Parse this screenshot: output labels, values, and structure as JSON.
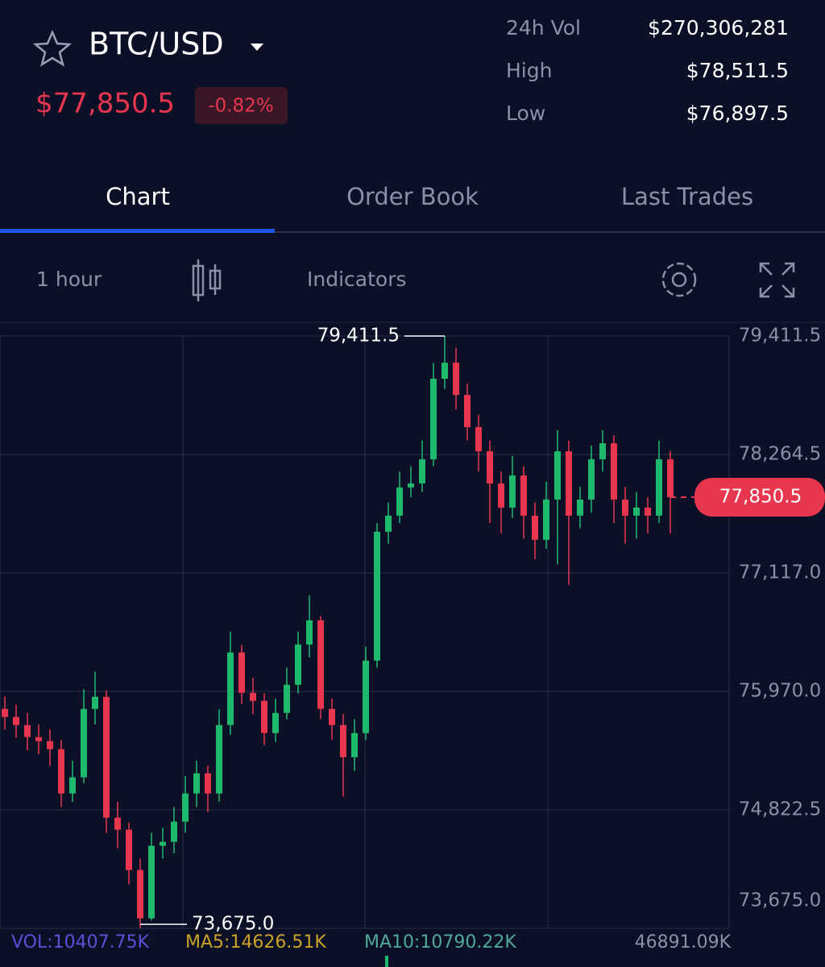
{
  "header": {
    "pair": "BTC/USD",
    "price": "$77,850.5",
    "change": "-0.82%",
    "stats": [
      {
        "label": "24h Vol",
        "value": "$270,306,281"
      },
      {
        "label": "High",
        "value": "$78,511.5"
      },
      {
        "label": "Low",
        "value": "$76,897.5"
      }
    ]
  },
  "tabs": [
    "Chart",
    "Order Book",
    "Last Trades"
  ],
  "toolbar": {
    "interval": "1 hour",
    "indicators": "Indicators"
  },
  "chart_data": {
    "type": "candlestick",
    "up_color": "#1fb96e",
    "down_color": "#e8364f",
    "grid": true,
    "ylim": [
      73675.0,
      79411.5
    ],
    "yticks": [
      {
        "value": 79411.5,
        "label": "79,411.5"
      },
      {
        "value": 78264.5,
        "label": "78,264.5"
      },
      {
        "value": 77117.0,
        "label": "77,117.0"
      },
      {
        "value": 75970.0,
        "label": "75,970.0"
      },
      {
        "value": 74822.5,
        "label": "74,822.5"
      },
      {
        "value": 73675.0,
        "label": "73,675.0"
      }
    ],
    "open": [
      75800,
      75722,
      75644,
      75527,
      75488,
      75410,
      74981,
      75137,
      75800,
      75917,
      74747,
      74630,
      74240,
      73772,
      74474,
      74513,
      74708,
      74981,
      75176,
      74981,
      75644,
      76346,
      75956,
      75878,
      75566,
      75761,
      76034,
      76424,
      76658,
      75800,
      75644,
      75332,
      75566,
      76268,
      77516,
      77672,
      77945,
      77984,
      78218,
      78998,
      79153,
      78841,
      78529,
      78295,
      77984,
      77750,
      78061,
      77672,
      77438,
      77828,
      78295,
      77672,
      77828,
      78218,
      78373,
      77828,
      77672,
      77750,
      77672,
      78218
    ],
    "high": [
      75920,
      75840,
      75760,
      75650,
      75600,
      75500,
      75300,
      75990,
      76160,
      75980,
      74900,
      74700,
      74350,
      74600,
      74650,
      74850,
      75150,
      75300,
      75250,
      75800,
      76550,
      76420,
      76100,
      75950,
      75900,
      76200,
      76550,
      76900,
      76700,
      75900,
      75750,
      75700,
      76400,
      77600,
      77800,
      78100,
      78150,
      78400,
      79150,
      79411.5,
      79300,
      78950,
      78650,
      78400,
      78100,
      78250,
      78150,
      77800,
      78000,
      78500,
      78400,
      77950,
      78350,
      78500,
      78450,
      77950,
      77900,
      77850,
      78400,
      78300
    ],
    "low": [
      75600,
      75520,
      75400,
      75360,
      75250,
      74850,
      74900,
      75080,
      75650,
      74600,
      74450,
      74100,
      73675,
      73750,
      74350,
      74400,
      74600,
      74850,
      74800,
      74900,
      75550,
      75850,
      75750,
      75450,
      75480,
      75700,
      75950,
      76300,
      75700,
      75500,
      74950,
      75200,
      75500,
      76200,
      77400,
      77600,
      77850,
      77900,
      78150,
      78900,
      78700,
      78400,
      78100,
      77600,
      77500,
      77650,
      77450,
      77250,
      77350,
      77200,
      77000,
      77550,
      77700,
      78100,
      77600,
      77400,
      77450,
      77500,
      77600,
      77500
    ],
    "close": [
      75722,
      75644,
      75527,
      75488,
      75410,
      74981,
      75137,
      75800,
      75917,
      74747,
      74630,
      74240,
      73772,
      74474,
      74513,
      74708,
      74981,
      75176,
      74981,
      75644,
      76346,
      75956,
      75878,
      75566,
      75761,
      76034,
      76424,
      76658,
      75800,
      75644,
      75332,
      75566,
      76268,
      77516,
      77672,
      77945,
      77984,
      78218,
      78998,
      79153,
      78841,
      78529,
      78295,
      77984,
      77750,
      78061,
      77672,
      77438,
      77828,
      78295,
      77672,
      77828,
      78218,
      78373,
      77828,
      77672,
      77750,
      77672,
      78218,
      77850.5
    ],
    "max_marker": {
      "value": 79411.5,
      "label": "79,411.5"
    },
    "min_marker": {
      "value": 73675.0,
      "label": "73,675.0"
    },
    "last_price": {
      "value": 77850.5,
      "label": "77,850.5"
    },
    "volume_labels": [
      "VOL:10407.75K",
      "MA5:14626.51K",
      "MA10:10790.22K",
      "46891.09K"
    ]
  }
}
